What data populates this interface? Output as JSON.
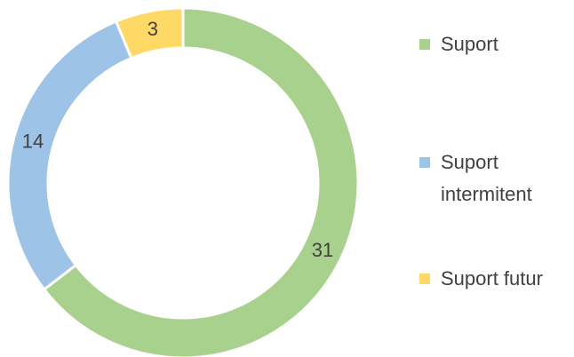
{
  "chart_data": {
    "type": "donut",
    "categories": [
      "Suport",
      "Suport intermitent",
      "Suport futur"
    ],
    "values": [
      31,
      14,
      3
    ],
    "colors": [
      "#a9d18e",
      "#9dc3e6",
      "#ffd966"
    ]
  }
}
